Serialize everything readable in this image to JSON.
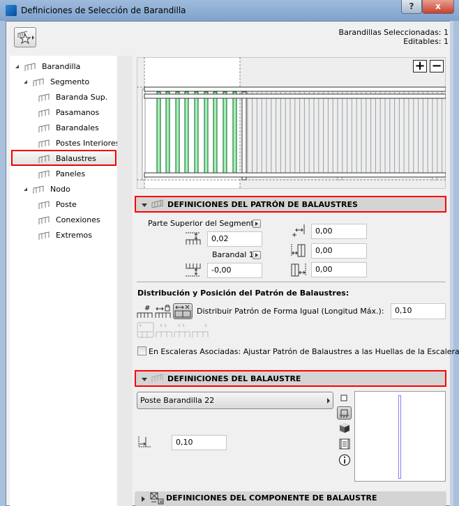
{
  "window": {
    "title": "Definiciones de Selección de Barandilla",
    "help_label": "?",
    "close_label": "x"
  },
  "header": {
    "selected": "Barandillas Seleccionadas: 1",
    "editable": "Editables: 1"
  },
  "tree": {
    "items": [
      {
        "label": "Barandilla",
        "level": 0,
        "expanded": true
      },
      {
        "label": "Segmento",
        "level": 1,
        "expanded": true
      },
      {
        "label": "Baranda Sup.",
        "level": 2
      },
      {
        "label": "Pasamanos",
        "level": 2
      },
      {
        "label": "Barandales",
        "level": 2
      },
      {
        "label": "Postes Interiores",
        "level": 2
      },
      {
        "label": "Balaustres",
        "level": 2,
        "selected": true
      },
      {
        "label": "Paneles",
        "level": 2
      },
      {
        "label": "Nodo",
        "level": 1,
        "expanded": true
      },
      {
        "label": "Poste",
        "level": 2
      },
      {
        "label": "Conexiones",
        "level": 2
      },
      {
        "label": "Extremos",
        "level": 2
      }
    ]
  },
  "preview": {
    "zoom_in": "+",
    "zoom_out": "−"
  },
  "pattern_section": {
    "title": "DEFINICIONES DEL PATRÓN DE BALAUSTRES",
    "top_ref_label": "Parte Superior del Segmento",
    "top_offset": "0,02",
    "bottom_ref_label": "Barandal 1",
    "bottom_offset": "-0,00",
    "offset_start": "0,00",
    "offset_left": "0,00",
    "offset_right": "0,00",
    "distribution_heading": "Distribución y Posición del Patrón de Balaustres:",
    "distribution_label": "Distribuir Patrón de Forma Igual (Longitud Máx.):",
    "distribution_value": "0,10",
    "stair_checkbox_label": "En Escaleras Asociadas: Ajustar Patrón de Balaustres a las Huellas de la Escalera",
    "stair_checkbox_checked": false
  },
  "baluster_section": {
    "title": "DEFINICIONES DEL BALAUSTRE",
    "object": "Poste Barandilla 22",
    "width_value": "0,10"
  },
  "component_section": {
    "title": "DEFINICIONES DEL COMPONENTE DE BALAUSTRE"
  },
  "colors": {
    "highlight": "#ff0000",
    "baluster_green": "#a8f0b8",
    "preview_line": "#8080ff"
  }
}
